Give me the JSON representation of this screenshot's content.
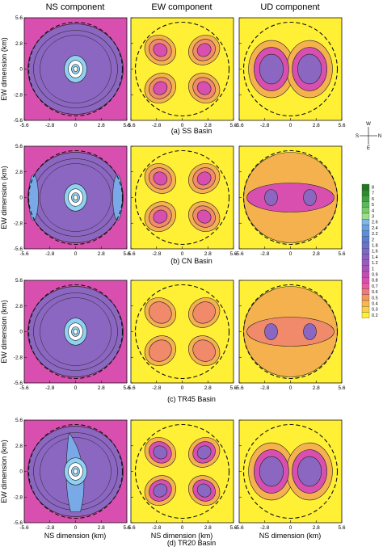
{
  "column_titles": [
    "NS component",
    "EW component",
    "UD component"
  ],
  "axes": {
    "ylabel": "EW dimension (km)",
    "xlabel": "NS dimension (km)",
    "ticks": [
      "-5.6",
      "-2.8",
      "0",
      "2.8",
      "5.6"
    ]
  },
  "rows": [
    {
      "caption": "(a) SS Basin"
    },
    {
      "caption": "(b) CN Basin"
    },
    {
      "caption": "(c) TR45 Basin"
    },
    {
      "caption": "(d) TR20 Basin"
    }
  ],
  "compass": {
    "w": "W",
    "s": "S",
    "n": "N",
    "e": "E"
  },
  "colorbar": {
    "labels": [
      "8",
      "7",
      "6",
      "5",
      "4",
      "3",
      "2.6",
      "2.4",
      "2.2",
      "2",
      "1.8",
      "1.6",
      "1.4",
      "1.2",
      "1",
      "0.9",
      "0.8",
      "0.7",
      "0.6",
      "0.5",
      "0.4",
      "0.3",
      "0.2"
    ],
    "colors": [
      "#1f7a1f",
      "#2e8b2e",
      "#45a045",
      "#5cb85c",
      "#7acc6a",
      "#9ddc8a",
      "#7fb5e8",
      "#6aa2e0",
      "#5b8fd8",
      "#5a7fd0",
      "#6a73c8",
      "#7a6bc4",
      "#8a62c0",
      "#9a5cbc",
      "#aa54b8",
      "#c04fb4",
      "#d84fae",
      "#e85ca0",
      "#f07a7a",
      "#f4985e",
      "#f7b650",
      "#fad04a",
      "#fff033"
    ]
  },
  "palette": {
    "ns_background": "#d94fb0",
    "ew_background": "#fff036",
    "orange": "#f6b14f",
    "magenta": "#d94fb0",
    "violet": "#8c67c2",
    "blue": "#7aa9e8",
    "cyan": "#8fd1f2"
  }
}
